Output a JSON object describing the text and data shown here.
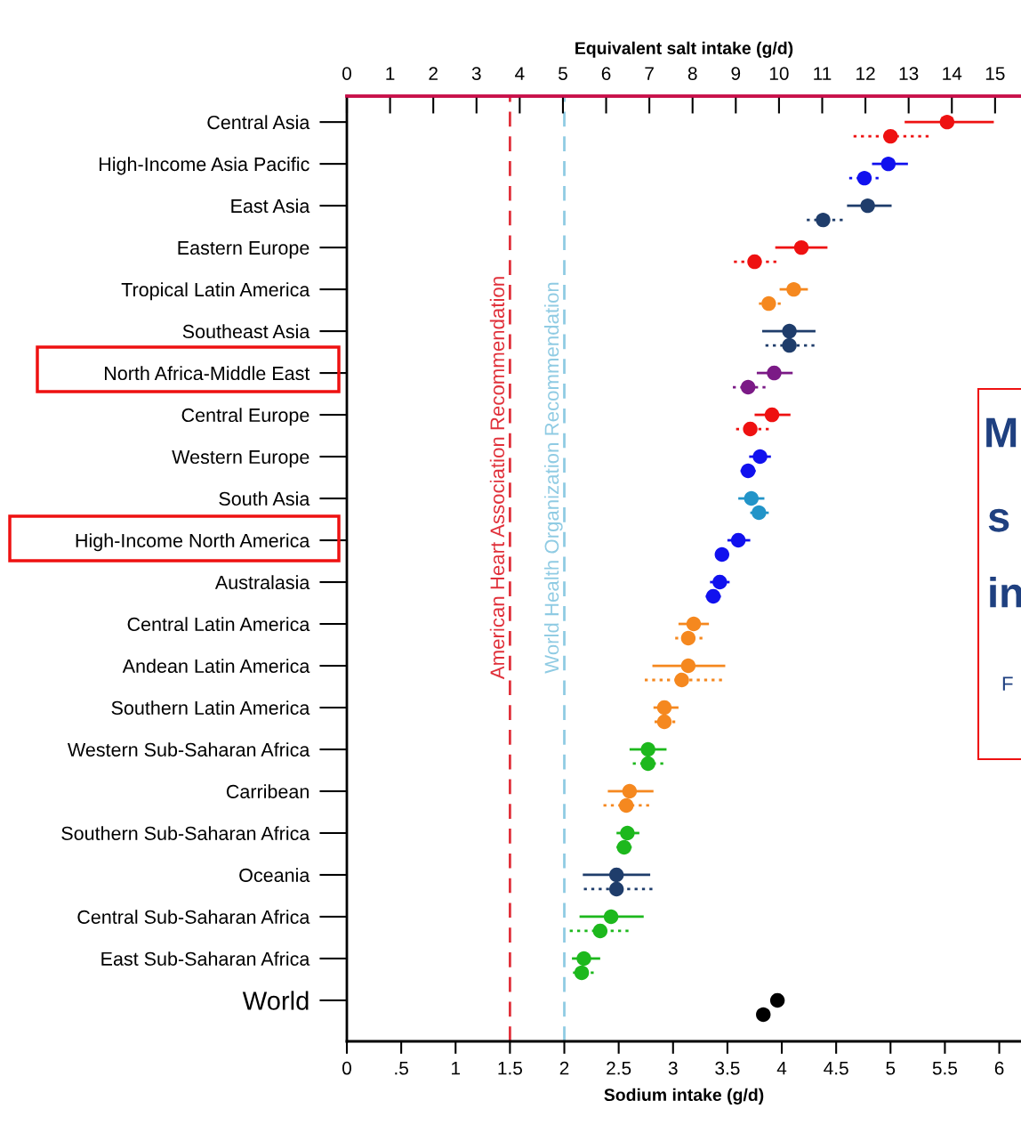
{
  "chart_data": {
    "type": "scatter",
    "xlabel": "Sodium intake (g/d)",
    "x2label": "Equivalent salt intake (g/d)",
    "categories": [
      "Central Asia",
      "High-Income Asia Pacific",
      "East Asia",
      "Eastern Europe",
      "Tropical Latin America",
      "Southeast Asia",
      "North Africa-Middle East",
      "Central Europe",
      "Western Europe",
      "South Asia",
      "High-Income North America",
      "Australasia",
      "Central Latin America",
      "Andean Latin America",
      "Southern Latin America",
      "Western Sub-Saharan Africa",
      "Carribean",
      "Southern Sub-Saharan Africa",
      "Oceania",
      "Central Sub-Saharan Africa",
      "East Sub-Saharan Africa",
      "World"
    ],
    "orientation": "horizontal",
    "marker": "circle",
    "grid": false,
    "series": [
      {
        "line_style": "solid",
        "values": [
          5.52,
          4.98,
          4.79,
          4.18,
          4.11,
          4.07,
          3.93,
          3.91,
          3.8,
          3.72,
          3.6,
          3.43,
          3.19,
          3.14,
          2.92,
          2.77,
          2.6,
          2.58,
          2.48,
          2.43,
          2.18,
          3.96
        ],
        "errors": [
          [
            5.13,
            5.95
          ],
          [
            4.83,
            5.16
          ],
          [
            4.6,
            5.01
          ],
          [
            3.94,
            4.42
          ],
          [
            3.98,
            4.24
          ],
          [
            3.82,
            4.31
          ],
          [
            3.77,
            4.1
          ],
          [
            3.75,
            4.08
          ],
          [
            3.7,
            3.9
          ],
          [
            3.6,
            3.84
          ],
          [
            3.5,
            3.71
          ],
          [
            3.34,
            3.52
          ],
          [
            3.05,
            3.33
          ],
          [
            2.81,
            3.48
          ],
          [
            2.82,
            3.05
          ],
          [
            2.6,
            2.94
          ],
          [
            2.4,
            2.82
          ],
          [
            2.48,
            2.69
          ],
          [
            2.17,
            2.79
          ],
          [
            2.14,
            2.73
          ],
          [
            2.07,
            2.33
          ],
          null
        ],
        "colors": [
          "#ee1111",
          "#1111ee",
          "#1f3d6b",
          "#ee1111",
          "#f5881f",
          "#1f3d6b",
          "#7b1a86",
          "#ee1111",
          "#1111ee",
          "#2294c8",
          "#1111ee",
          "#1111ee",
          "#f5881f",
          "#f5881f",
          "#f5881f",
          "#1db81d",
          "#f5881f",
          "#1db81d",
          "#1f3d6b",
          "#1db81d",
          "#1db81d",
          "#000000"
        ]
      },
      {
        "line_style": "dotted",
        "values": [
          5.0,
          4.76,
          4.38,
          3.75,
          3.88,
          4.07,
          3.69,
          3.71,
          3.69,
          3.79,
          3.45,
          3.37,
          3.14,
          3.08,
          2.92,
          2.77,
          2.57,
          2.55,
          2.48,
          2.33,
          2.16,
          3.83
        ],
        "errors": [
          [
            4.66,
            5.35
          ],
          [
            4.62,
            4.89
          ],
          [
            4.23,
            4.56
          ],
          [
            3.56,
            3.95
          ],
          [
            3.79,
            3.99
          ],
          [
            3.85,
            4.3
          ],
          [
            3.55,
            3.85
          ],
          [
            3.58,
            3.88
          ],
          [
            3.62,
            3.76
          ],
          [
            3.71,
            3.88
          ],
          [
            3.4,
            3.51
          ],
          [
            3.3,
            3.44
          ],
          [
            3.02,
            3.27
          ],
          [
            2.74,
            3.45
          ],
          [
            2.83,
            3.02
          ],
          [
            2.63,
            2.91
          ],
          [
            2.36,
            2.78
          ],
          [
            2.48,
            2.62
          ],
          [
            2.18,
            2.81
          ],
          [
            2.05,
            2.59
          ],
          [
            2.08,
            2.27
          ],
          null
        ],
        "colors": [
          "#ee1111",
          "#1111ee",
          "#1f3d6b",
          "#ee1111",
          "#f5881f",
          "#1f3d6b",
          "#7b1a86",
          "#ee1111",
          "#1111ee",
          "#2294c8",
          "#1111ee",
          "#1111ee",
          "#f5881f",
          "#f5881f",
          "#f5881f",
          "#1db81d",
          "#f5881f",
          "#1db81d",
          "#1f3d6b",
          "#1db81d",
          "#1db81d",
          "#000000"
        ]
      }
    ],
    "xlim": [
      0,
      6.2
    ],
    "xticks": [
      0,
      {
        "value": 0.5,
        "label": ".5"
      },
      1,
      1.5,
      2,
      2.5,
      3,
      3.5,
      4,
      4.5,
      5,
      5.5,
      6
    ],
    "x2lim": [
      0,
      15.6
    ],
    "x2ticks": [
      0,
      1,
      2,
      3,
      4,
      5,
      6,
      7,
      8,
      9,
      10,
      11,
      12,
      13,
      14,
      15
    ],
    "ref_lines": [
      {
        "axis": "x",
        "value": 1.5,
        "label": "American Heart Association Recommendation",
        "color": "#e0303a",
        "line_style": "dashed"
      },
      {
        "axis": "x",
        "value": 2,
        "label": "World Health Organization Recommendation",
        "color": "#8fcbe3",
        "line_style": "dashed"
      }
    ],
    "annotations": [
      "M",
      "s",
      "in",
      "F"
    ]
  }
}
